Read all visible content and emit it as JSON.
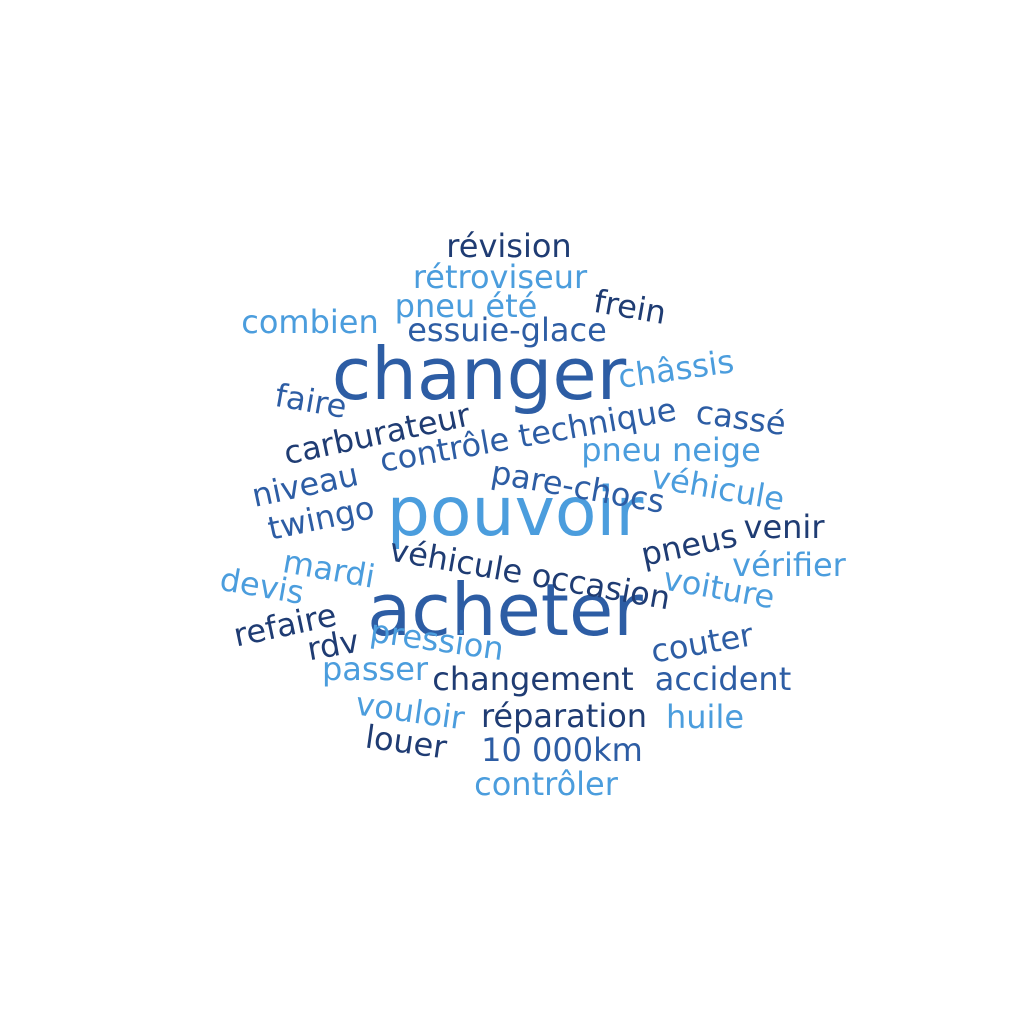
{
  "words": {
    "changer": "changer",
    "pouvoir": "pouvoir",
    "acheter": "acheter",
    "revision": "révision",
    "retroviseur": "rétroviseur",
    "pneu_ete": "pneu été",
    "frein": "frein",
    "combien": "combien",
    "essuie_glace": "essuie-glace",
    "chassis": "châssis",
    "faire": "faire",
    "carburateur": "carburateur",
    "controle_technique": "contrôle technique",
    "casse": "cassé",
    "pneu_neige": "pneu neige",
    "niveau": "niveau",
    "pare_chocs": "pare-chocs",
    "vehicule_1": "véhicule",
    "twingo": "twingo",
    "venir": "venir",
    "pneus": "pneus",
    "vehicule_occasion": "véhicule occasion",
    "verifier": "vérifier",
    "mardi": "mardi",
    "voiture": "voiture",
    "devis": "devis",
    "refaire": "refaire",
    "pression": "pression",
    "couter": "couter",
    "rdv": "rdv",
    "passer": "passer",
    "changement": "changement",
    "accident": "accident",
    "vouloir": "vouloir",
    "reparation": "réparation",
    "huile": "huile",
    "louer": "louer",
    "km": "10 000km",
    "controler": "contrôler"
  },
  "colors": {
    "dark": "#1f3c73",
    "mid": "#2d5da4",
    "light": "#4b9ddd"
  }
}
